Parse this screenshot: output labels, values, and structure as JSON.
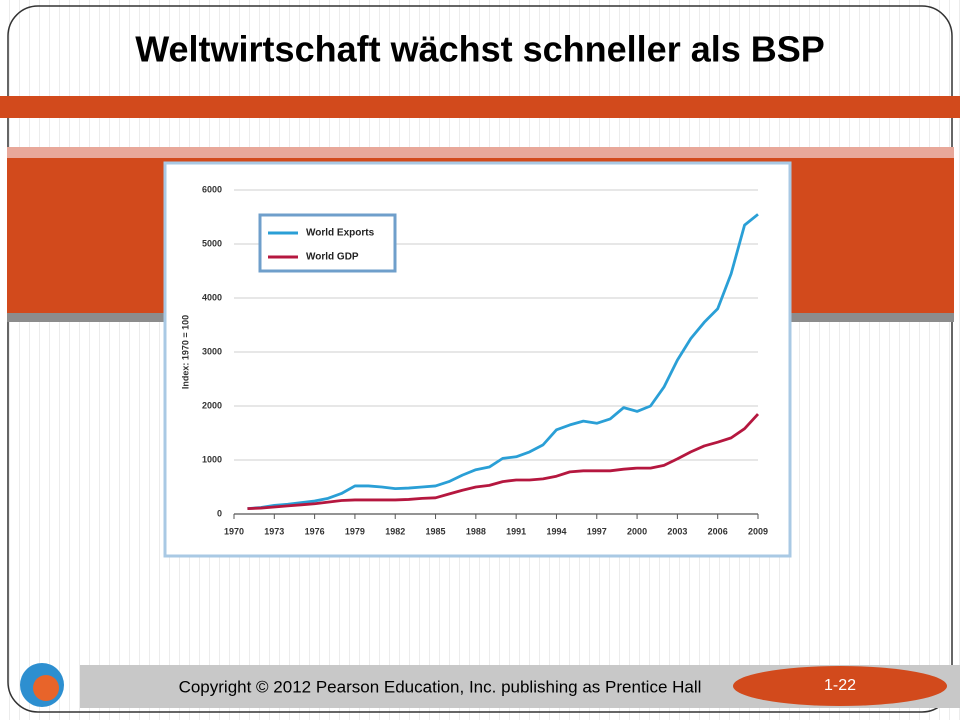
{
  "slide": {
    "title": "Weltwirtschaft wächst schneller als BSP",
    "footer": "Copyright © 2012 Pearson Education, Inc. publishing as Prentice Hall",
    "page": "1-22"
  },
  "chart_data": {
    "type": "line",
    "ylabel": "Index: 1970 = 100",
    "x": [
      1971,
      1972,
      1973,
      1974,
      1975,
      1976,
      1977,
      1978,
      1979,
      1980,
      1981,
      1982,
      1983,
      1984,
      1985,
      1986,
      1987,
      1988,
      1989,
      1990,
      1991,
      1992,
      1993,
      1994,
      1995,
      1996,
      1997,
      1998,
      1999,
      2000,
      2001,
      2002,
      2003,
      2004,
      2005,
      2006,
      2007,
      2008,
      2009
    ],
    "series": [
      {
        "name": "World Exports",
        "color": "#2a9fd6",
        "values": [
          100,
          120,
          160,
          180,
          210,
          240,
          290,
          380,
          520,
          520,
          500,
          470,
          480,
          500,
          520,
          600,
          720,
          820,
          870,
          1030,
          1060,
          1150,
          1280,
          1560,
          1650,
          1720,
          1680,
          1760,
          1970,
          1900,
          2000,
          2350,
          2850,
          3250,
          3550,
          3800,
          4450,
          5350,
          5550
        ]
      },
      {
        "name": "World GDP",
        "color": "#b5173f",
        "values": [
          100,
          110,
          130,
          150,
          170,
          190,
          220,
          250,
          260,
          260,
          260,
          260,
          270,
          290,
          300,
          370,
          440,
          500,
          530,
          600,
          630,
          630,
          650,
          700,
          780,
          800,
          800,
          800,
          830,
          850,
          850,
          900,
          1020,
          1150,
          1260,
          1330,
          1410,
          1580,
          1850
        ]
      }
    ],
    "xlim": [
      1970,
      2009
    ],
    "xticks": [
      1970,
      1973,
      1976,
      1979,
      1982,
      1985,
      1988,
      1991,
      1994,
      1997,
      2000,
      2003,
      2006,
      2009
    ],
    "ylim": [
      0,
      6000
    ],
    "yticks": [
      0,
      1000,
      2000,
      3000,
      4000,
      5000,
      6000
    ],
    "grid": true,
    "legend": "upper left"
  }
}
